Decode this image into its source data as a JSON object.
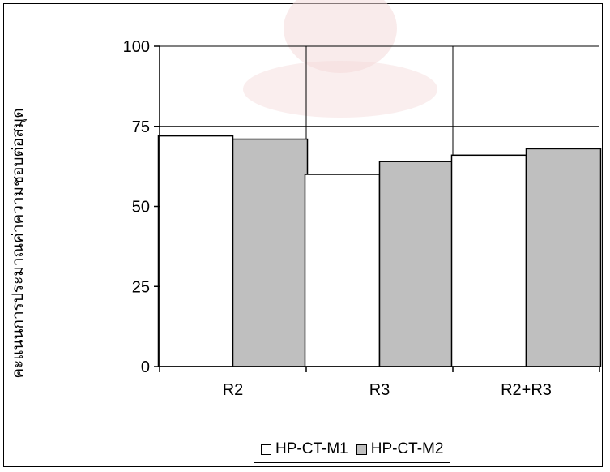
{
  "chart_data": {
    "type": "bar",
    "title": "",
    "xlabel": "",
    "ylabel": "คะแนนการประมาณค่าความชอบต่อสมุด",
    "categories": [
      "R2",
      "R3",
      "R2+R3"
    ],
    "series": [
      {
        "name": "HP-CT-M1",
        "values": [
          72,
          60,
          66
        ],
        "color": "#ffffff"
      },
      {
        "name": "HP-CT-M2",
        "values": [
          71,
          64,
          68
        ],
        "color": "#bfbfbf"
      }
    ],
    "ylim": [
      0,
      100
    ],
    "yticks": [
      0,
      25,
      50,
      75,
      100
    ],
    "grid": true,
    "legend": "bottom"
  }
}
